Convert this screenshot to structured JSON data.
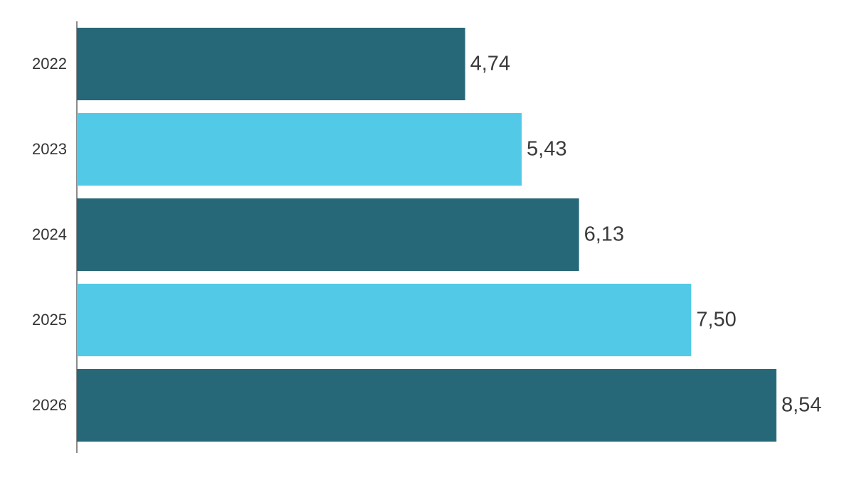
{
  "chart_data": {
    "type": "bar",
    "orientation": "horizontal",
    "categories": [
      "2022",
      "2023",
      "2024",
      "2025",
      "2026"
    ],
    "values": [
      4.74,
      5.43,
      6.13,
      7.5,
      8.54
    ],
    "value_labels": [
      "4,74",
      "5,43",
      "6,13",
      "7,50",
      "8,54"
    ],
    "colors": [
      "#266877",
      "#53c9e8",
      "#266877",
      "#53c9e8",
      "#266877"
    ]
  }
}
